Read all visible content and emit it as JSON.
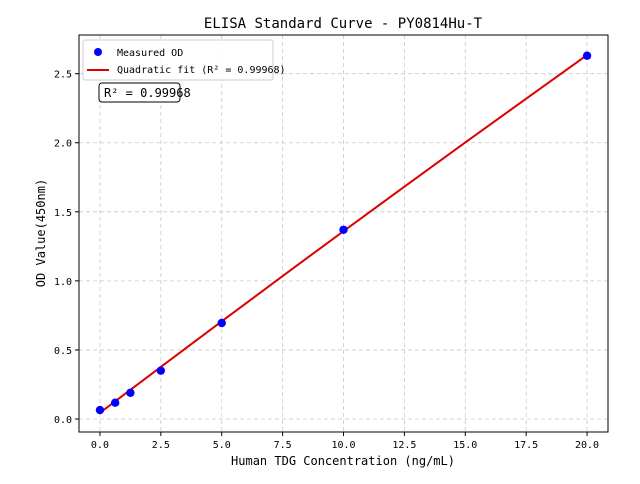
{
  "chart_data": {
    "type": "scatter",
    "title": "ELISA Standard Curve - PY0814Hu-T",
    "xlabel": "Human TDG Concentration (ng/mL)",
    "ylabel": "OD Value(450nm)",
    "xlim": [
      -0.86,
      20.86
    ],
    "ylim": [
      -0.094,
      2.78
    ],
    "xticks": [
      0.0,
      2.5,
      5.0,
      7.5,
      10.0,
      12.5,
      15.0,
      17.5,
      20.0
    ],
    "xtick_labels": [
      "0.0",
      "2.5",
      "5.0",
      "7.5",
      "10.0",
      "12.5",
      "15.0",
      "17.5",
      "20.0"
    ],
    "yticks": [
      0.0,
      0.5,
      1.0,
      1.5,
      2.0,
      2.5
    ],
    "ytick_labels": [
      "0.0",
      "0.5",
      "1.0",
      "1.5",
      "2.0",
      "2.5"
    ],
    "grid": true,
    "legend_placement": "top-left",
    "series": [
      {
        "name": "Measured OD",
        "kind": "scatter",
        "color": "#0000ff",
        "x": [
          0,
          0.625,
          1.25,
          2.5,
          5,
          10,
          20
        ],
        "y": [
          0.065,
          0.118,
          0.19,
          0.35,
          0.695,
          1.37,
          2.63
        ]
      },
      {
        "name": "Quadratic fit (R² = 0.99968)",
        "kind": "line",
        "color": "#dd0000",
        "x": [
          0,
          2.5,
          5,
          7.5,
          10,
          12.5,
          15,
          17.5,
          20
        ],
        "y": [
          0.045,
          0.377,
          0.707,
          1.035,
          1.36,
          1.682,
          2.002,
          2.319,
          2.635
        ]
      }
    ],
    "annotation": "R² = 0.99968"
  }
}
